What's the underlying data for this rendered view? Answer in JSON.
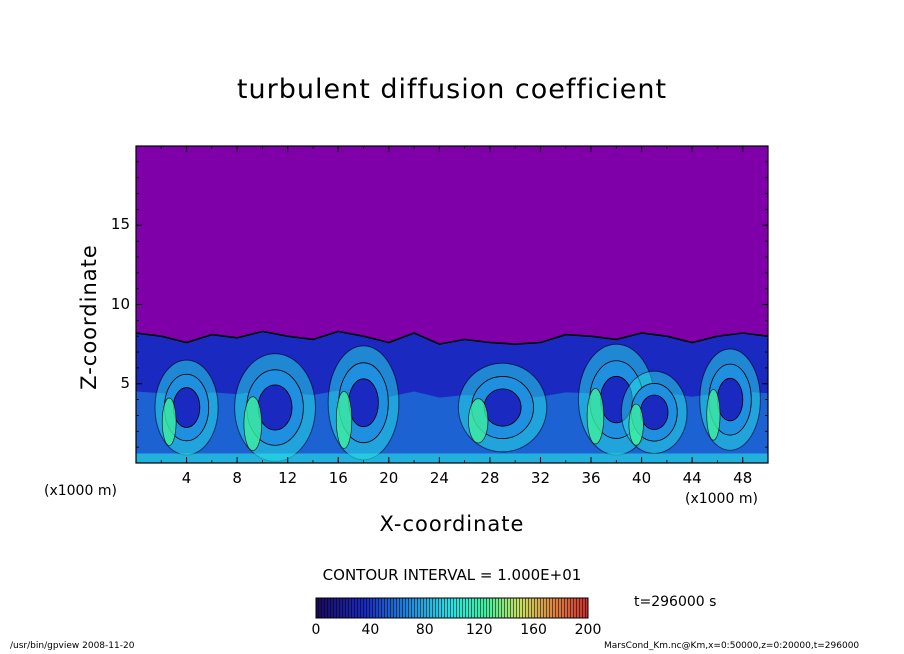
{
  "chart_data": {
    "type": "heatmap",
    "title": "turbulent diffusion coefficient",
    "xlabel": "X-coordinate",
    "ylabel": "Z-coordinate",
    "x_unit_label": "(x1000 m)",
    "xlim": [
      0,
      50
    ],
    "ylim": [
      0,
      20
    ],
    "x_ticks": [
      "4",
      "8",
      "12",
      "16",
      "20",
      "24",
      "28",
      "32",
      "36",
      "40",
      "44",
      "48"
    ],
    "x_tick_values": [
      4,
      8,
      12,
      16,
      20,
      24,
      28,
      32,
      36,
      40,
      44,
      48
    ],
    "y_ticks": [
      "5",
      "10",
      "15"
    ],
    "y_tick_values": [
      5,
      10,
      15
    ],
    "colorbar": {
      "range": [
        0,
        200
      ],
      "ticks": [
        "0",
        "40",
        "80",
        "120",
        "160",
        "200"
      ],
      "tick_values": [
        0,
        40,
        80,
        120,
        160,
        200
      ]
    },
    "contour_interval_text": "CONTOUR INTERVAL = 1.000E+01",
    "time_text": "t=296000 s",
    "boundary_layer_top": [
      [
        0,
        8.2
      ],
      [
        2,
        8.0
      ],
      [
        4,
        7.6
      ],
      [
        6,
        8.1
      ],
      [
        8,
        7.9
      ],
      [
        10,
        8.3
      ],
      [
        12,
        8.0
      ],
      [
        14,
        7.8
      ],
      [
        16,
        8.3
      ],
      [
        18,
        8.0
      ],
      [
        20,
        7.6
      ],
      [
        22,
        8.2
      ],
      [
        24,
        7.5
      ],
      [
        26,
        7.8
      ],
      [
        28,
        7.6
      ],
      [
        30,
        7.5
      ],
      [
        32,
        7.6
      ],
      [
        34,
        8.1
      ],
      [
        36,
        8.0
      ],
      [
        38,
        7.8
      ],
      [
        40,
        8.2
      ],
      [
        42,
        8.0
      ],
      [
        44,
        7.6
      ],
      [
        46,
        8.0
      ],
      [
        48,
        8.2
      ],
      [
        50,
        8.0
      ]
    ],
    "eddies": [
      {
        "x": 4,
        "z": 3.5,
        "rx": 2.5,
        "rz": 3.0
      },
      {
        "x": 11,
        "z": 3.5,
        "rx": 3.2,
        "rz": 3.4
      },
      {
        "x": 18,
        "z": 3.8,
        "rx": 2.8,
        "rz": 3.6
      },
      {
        "x": 29,
        "z": 3.5,
        "rx": 3.5,
        "rz": 2.8
      },
      {
        "x": 38,
        "z": 4.0,
        "rx": 3.0,
        "rz": 3.5
      },
      {
        "x": 41,
        "z": 3.2,
        "rx": 2.6,
        "rz": 2.6
      },
      {
        "x": 47,
        "z": 4.0,
        "rx": 2.4,
        "rz": 3.2
      }
    ],
    "colors": {
      "background": "#7f00a9",
      "low": "#1a2ac0",
      "mid": "#1f8fe0",
      "high": "#27e4e4",
      "peak": "#3ef0a0"
    }
  },
  "footer": {
    "left": "/usr/bin/gpview   2008-11-20",
    "right": "MarsCond_Km.nc@Km,x=0:50000,z=0:20000,t=296000"
  }
}
